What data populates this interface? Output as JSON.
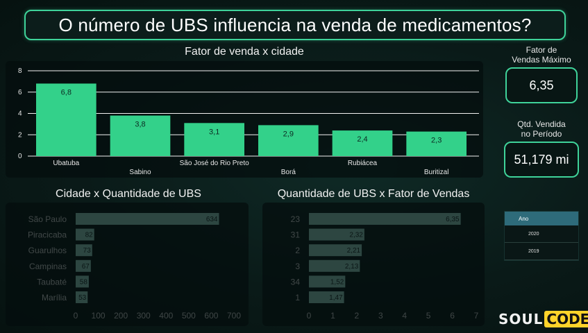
{
  "page_title": "O número de UBS influencia na venda de medicamentos?",
  "colors": {
    "accent": "#3fd39a",
    "bar_primary": "#33d18a",
    "bar_secondary": "#a6f0dc",
    "background": "#0a1a18"
  },
  "kpis": [
    {
      "label_line1": "Fator de",
      "label_line2": "Vendas Máximo",
      "value": "6,35"
    },
    {
      "label_line1": "Qtd. Vendida",
      "label_line2": "no Período",
      "value": "51,179 mi"
    }
  ],
  "slicer": {
    "header": "Ano",
    "items": [
      "2020",
      "2019"
    ]
  },
  "logo": {
    "part1": "SOUL",
    "part2": "CODE"
  },
  "chart_data": [
    {
      "type": "bar",
      "title": "Fator de venda x cidade",
      "categories": [
        "Ubatuba",
        "Sabino",
        "São José do Rio Preto",
        "Borá",
        "Rubiácea",
        "Buritizal"
      ],
      "values": [
        6.8,
        3.8,
        3.1,
        2.9,
        2.4,
        2.3
      ],
      "data_labels": [
        "6,8",
        "3,8",
        "3,1",
        "2,9",
        "2,4",
        "2,3"
      ],
      "ylim": [
        0,
        8
      ],
      "yticks": [
        "0",
        "2",
        "4",
        "6",
        "8"
      ],
      "grid": true
    },
    {
      "type": "bar",
      "orientation": "horizontal",
      "title": "Cidade x Quantidade de  UBS",
      "categories": [
        "São Paulo",
        "Piracicaba",
        "Guarulhos",
        "Campinas",
        "Taubaté",
        "Marília"
      ],
      "values": [
        634,
        82,
        73,
        67,
        58,
        53
      ],
      "xlim": [
        0,
        700
      ],
      "xticks": [
        "0",
        "100",
        "200",
        "300",
        "400",
        "500",
        "600",
        "700"
      ],
      "grid": false
    },
    {
      "type": "bar",
      "orientation": "horizontal",
      "title": "Quantidade de UBS x Fator de Vendas",
      "categories": [
        "23",
        "31",
        "2",
        "3",
        "34",
        "1"
      ],
      "values": [
        6.35,
        2.32,
        2.21,
        2.13,
        1.52,
        1.47
      ],
      "data_labels": [
        "6,35",
        "2,32",
        "2,21",
        "2,13",
        "1,52",
        "1,47"
      ],
      "xlim": [
        0,
        7
      ],
      "xticks": [
        "0",
        "1",
        "2",
        "3",
        "4",
        "5",
        "6",
        "7"
      ],
      "grid": false
    }
  ]
}
